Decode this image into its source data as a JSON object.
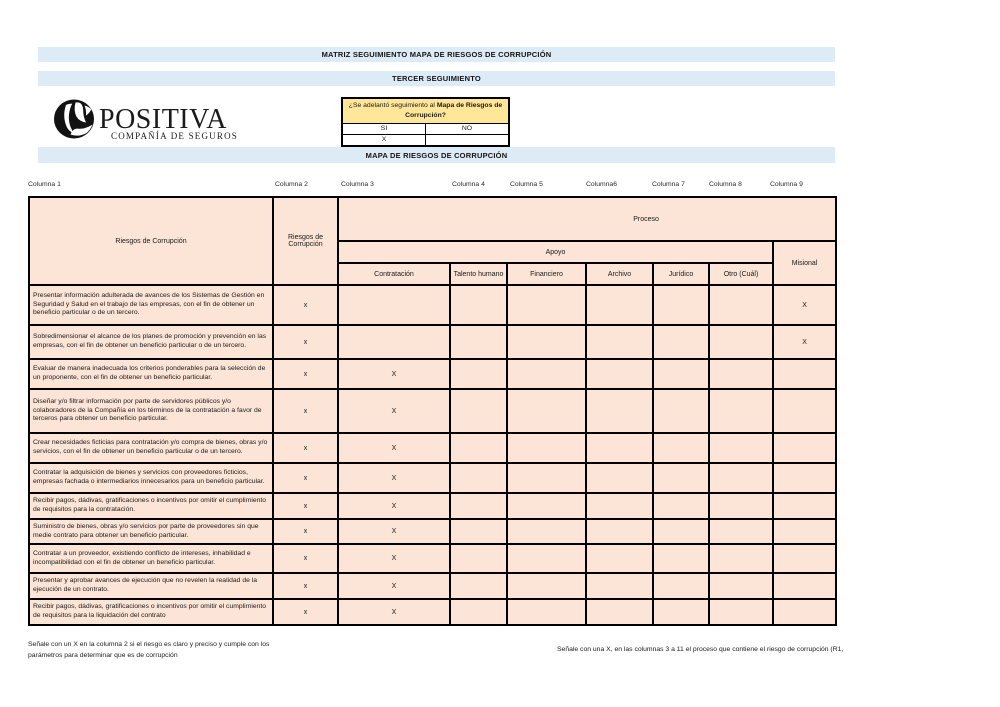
{
  "header": {
    "title1": "MATRIZ SEGUIMIENTO MAPA DE RIESGOS DE CORRUPCIÓN",
    "title2": "TERCER SEGUIMIENTO",
    "section": "MAPA DE RIESGOS DE CORRUPCIÓN"
  },
  "logo": {
    "brand": "POSITIVA",
    "subtitle": "COMPAÑÍA DE SEGUROS"
  },
  "question_box": {
    "prefix": "¿Se adelantó seguimiento al ",
    "bold": "Mapa de Riesgos de Corrupción?",
    "option_yes": "SI",
    "option_no": "NO",
    "answer_yes": "X",
    "answer_no": ""
  },
  "column_labels": [
    "Columna 1",
    "Columna 2",
    "Columna 3",
    "Columna 4",
    "Columna 5",
    "Columna6",
    "Columna 7",
    "Columna 8",
    "Columna 9"
  ],
  "table": {
    "header": {
      "riesgos_col1": "Riesgos de Corrupción",
      "riesgos_col2": "Riesgos de Corrupción",
      "proceso": "Proceso",
      "apoyo": "Apoyo",
      "misional": "Misional",
      "sub_headers": [
        "Contratación",
        "Talento humano",
        "Financiero",
        "Archivo",
        "Jurídico",
        "Otro (Cuál)"
      ]
    },
    "rows": [
      {
        "risk": "Presentar información adulterada de avances de los Sistemas de Gestión en Seguridad y Salud en el trabajo de las empresas, con el fin de obtener un beneficio particular o de un tercero.",
        "col2": "x",
        "cells": [
          "",
          "",
          "",
          "",
          "",
          "",
          "X"
        ]
      },
      {
        "risk": "Sobredimensionar el alcance de los planes de promoción y prevención en las empresas, con el fin de obtener un beneficio particular o de un tercero.",
        "col2": "x",
        "cells": [
          "",
          "",
          "",
          "",
          "",
          "",
          "X"
        ]
      },
      {
        "risk": "Evaluar de manera inadecuada los criterios ponderables para la selección de un proponente, con el fin de obtener un beneficio particular.",
        "col2": "x",
        "cells": [
          "X",
          "",
          "",
          "",
          "",
          "",
          ""
        ]
      },
      {
        "risk": "Diseñar y/o filtrar información por parte de servidores públicos y/o colaboradores de la Compañía en los términos de la contratación a favor de terceros para obtener un beneficio particular.",
        "col2": "x",
        "cells": [
          "X",
          "",
          "",
          "",
          "",
          "",
          ""
        ]
      },
      {
        "risk": "Crear necesidades ficticias para contratación y/o compra de bienes, obras y/o servicios, con el fin de obtener un beneficio particular o de un tercero.",
        "col2": "x",
        "cells": [
          "X",
          "",
          "",
          "",
          "",
          "",
          ""
        ]
      },
      {
        "risk": "Contratar la adquisición de bienes y servicios con proveedores ficticios, empresas fachada o intermediarios innecesarios para un beneficio particular.",
        "col2": "x",
        "cells": [
          "X",
          "",
          "",
          "",
          "",
          "",
          ""
        ]
      },
      {
        "risk": "Recibir pagos, dádivas, gratificaciones o incentivos por omitir el cumplimiento de requisitos para la contratación.",
        "col2": "x",
        "cells": [
          "X",
          "",
          "",
          "",
          "",
          "",
          ""
        ]
      },
      {
        "risk": "Suministro de bienes, obras y/o servicios por parte de proveedores sin que medie contrato para obtener un beneficio particular.",
        "col2": "x",
        "cells": [
          "X",
          "",
          "",
          "",
          "",
          "",
          ""
        ]
      },
      {
        "risk": "Contratar a un proveedor, existiendo conflicto de intereses, inhabilidad e incompatibilidad con el fin de obtener un beneficio particular.",
        "col2": "x",
        "cells": [
          "X",
          "",
          "",
          "",
          "",
          "",
          ""
        ]
      },
      {
        "risk": "Presentar y aprobar avances de ejecución que no revelen la realidad de la ejecución de un contrato.",
        "col2": "x",
        "cells": [
          "X",
          "",
          "",
          "",
          "",
          "",
          ""
        ]
      },
      {
        "risk": "Recibir pagos, dádivas, gratificaciones o incentivos por omitir el cumplimiento de requisitos para la  liquidación del contrato",
        "col2": "x",
        "cells": [
          "X",
          "",
          "",
          "",
          "",
          "",
          ""
        ]
      }
    ]
  },
  "footnotes": {
    "left": "Señale con un X en la columna 2 si el riesgo es  claro y preciso y cumple con los parámetros para determinar que es de corrupción",
    "right": "Señale con una X,  en las columnas 3  a 11 el proceso que contiene el riesgo de corrupción (R1,"
  },
  "colors": {
    "title_bar_bg": "#DDEBF7",
    "table_bg": "#FCE4D6",
    "question_header_bg": "#FFE699",
    "border": "#000000"
  }
}
